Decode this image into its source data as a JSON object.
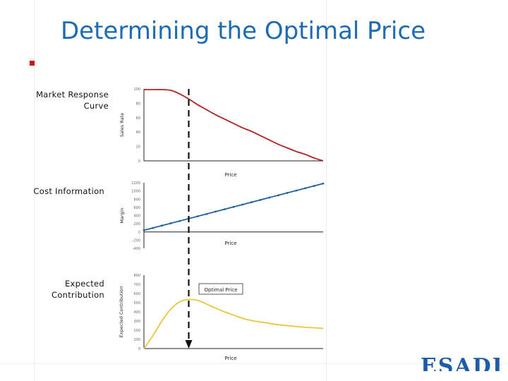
{
  "slide": {
    "title": "Determining the Optimal Price",
    "logo_text": "ESADE",
    "colors": {
      "title": "#1b6bb5",
      "bullet": "#cc1111",
      "logo": "#1d5ca8"
    }
  },
  "chart_data": [
    {
      "type": "line",
      "side_label": [
        "Market Response",
        "Curve"
      ],
      "title": "Market Response Curve",
      "xlabel": "Price",
      "ylabel": "Sales Rate",
      "ylim": [
        0,
        100
      ],
      "y_ticks": [
        0,
        20,
        40,
        60,
        80,
        100
      ],
      "y_tick_labels": [
        "0",
        "20",
        "40",
        "60",
        "80",
        "100"
      ],
      "color": "#b22222",
      "series": [
        {
          "name": "Sales Rate",
          "x": [
            0,
            5,
            10,
            15,
            20,
            25,
            30,
            35,
            40,
            45,
            50,
            55,
            60,
            65,
            70,
            75,
            80,
            85,
            90,
            95,
            100
          ],
          "values": [
            99,
            99,
            99,
            98,
            93,
            86,
            78,
            71,
            64,
            58,
            52,
            46,
            41,
            35,
            29,
            23,
            18,
            13,
            9,
            4,
            0
          ]
        }
      ]
    },
    {
      "type": "line",
      "side_label": [
        "Cost Information"
      ],
      "title": "Cost Information",
      "xlabel": "Price",
      "ylabel": "Margin",
      "ylim": [
        -400,
        1200
      ],
      "y_ticks": [
        -400,
        -200,
        0,
        200,
        400,
        600,
        800,
        1000,
        1200
      ],
      "y_tick_labels": [
        "-400",
        "-200",
        "0",
        "200",
        "400",
        "600",
        "800",
        "1000",
        "1200"
      ],
      "color": "#1f5f9e",
      "series": [
        {
          "name": "Margin",
          "x": [
            0,
            100
          ],
          "values": [
            40,
            1180
          ]
        }
      ]
    },
    {
      "type": "line",
      "side_label": [
        "Expected",
        "Contribution"
      ],
      "title": "Expected Contribution",
      "xlabel": "Price",
      "ylabel": "Expected Contribution",
      "ylim": [
        0,
        800
      ],
      "y_ticks": [
        0,
        100,
        200,
        300,
        400,
        500,
        600,
        700,
        800
      ],
      "y_tick_labels": [
        "0",
        "100",
        "200",
        "300",
        "400",
        "500",
        "600",
        "700",
        "800"
      ],
      "color": "#e8c840",
      "series": [
        {
          "name": "Expected Contribution",
          "x": [
            0,
            5,
            10,
            15,
            20,
            25,
            30,
            35,
            40,
            45,
            50,
            55,
            60,
            65,
            70,
            75,
            80,
            85,
            90,
            95,
            100
          ],
          "values": [
            0,
            140,
            300,
            430,
            510,
            535,
            525,
            485,
            440,
            400,
            365,
            330,
            305,
            290,
            275,
            260,
            250,
            240,
            232,
            226,
            220
          ]
        }
      ],
      "annotation": {
        "text": "Optimal Price",
        "x": 25
      }
    }
  ],
  "optimal_price_x": 25
}
